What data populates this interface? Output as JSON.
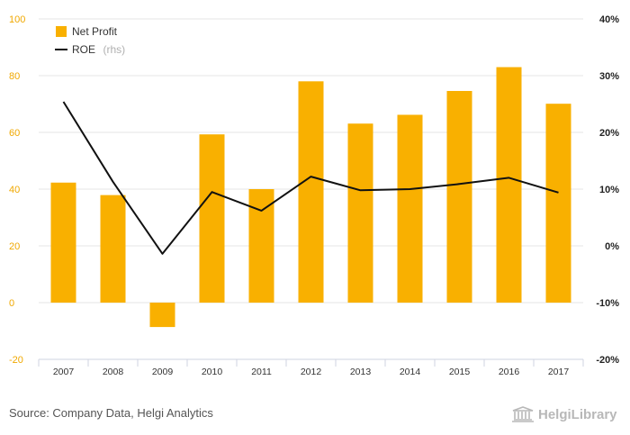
{
  "chart_data": {
    "type": "bar+line",
    "categories": [
      "2007",
      "2008",
      "2009",
      "2010",
      "2011",
      "2012",
      "2013",
      "2014",
      "2015",
      "2016",
      "2017"
    ],
    "series": [
      {
        "name": "Net Profit",
        "type": "bar",
        "axis": "left",
        "color": "#f9b000",
        "values": [
          42.3,
          37.9,
          -8.6,
          59.3,
          40.0,
          78.0,
          63.1,
          66.2,
          74.6,
          83.0,
          70.1
        ]
      },
      {
        "name": "ROE",
        "name_suffix": "(rhs)",
        "type": "line",
        "axis": "right",
        "color": "#111111",
        "values": [
          25.4,
          11.3,
          -1.4,
          9.5,
          6.2,
          12.2,
          9.8,
          10.0,
          10.9,
          12.0,
          9.4
        ]
      }
    ],
    "left_axis": {
      "ylim": [
        -20,
        100
      ],
      "ticks": [
        "-20",
        "0",
        "20",
        "40",
        "60",
        "80",
        "100"
      ],
      "tick_values": [
        -20,
        0,
        20,
        40,
        60,
        80,
        100
      ],
      "color": "#f0a800"
    },
    "right_axis": {
      "ylim": [
        -20,
        40
      ],
      "ticks": [
        "-20%",
        "-10%",
        "0%",
        "10%",
        "20%",
        "30%",
        "40%"
      ],
      "tick_values": [
        -20,
        -10,
        0,
        10,
        20,
        30,
        40
      ]
    },
    "grid": true,
    "legend_position": "top-left"
  },
  "source_text": "Source: Company Data, Helgi Analytics",
  "brand": {
    "text": "HelgiLibrary",
    "icon": "library-building-icon"
  }
}
